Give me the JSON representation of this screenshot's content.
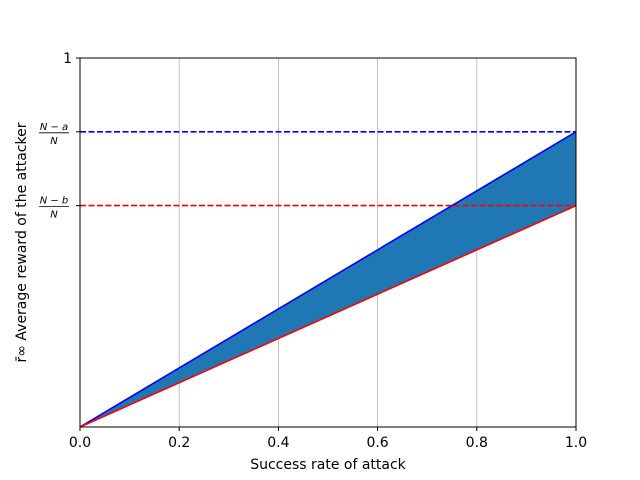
{
  "chart_data": {
    "type": "area",
    "xlabel": "Success rate of attack",
    "ylabel": "r̄∞ Average reward of the attacker",
    "xlim": [
      0,
      1
    ],
    "ylim": [
      0,
      1
    ],
    "grid": "vertical",
    "x_ticks": [
      "0.0",
      "0.2",
      "0.4",
      "0.6",
      "0.8",
      "1.0"
    ],
    "y_ticks": [
      {
        "value": 1.0,
        "label": "1"
      },
      {
        "value": 0.8,
        "numerator": "N − a",
        "denominator": "N"
      },
      {
        "value": 0.6,
        "numerator": "N − b",
        "denominator": "N"
      }
    ],
    "series": [
      {
        "color": "#0000ff",
        "style": "solid",
        "x": [
          0,
          1
        ],
        "y": [
          0,
          0.8
        ]
      },
      {
        "color": "#ff0000",
        "style": "solid",
        "x": [
          0,
          1
        ],
        "y": [
          0,
          0.6
        ]
      },
      {
        "color": "#0000ff",
        "style": "dashed",
        "x": [
          0,
          1
        ],
        "y": [
          0.8,
          0.8
        ]
      },
      {
        "color": "#ff0000",
        "style": "dashed",
        "x": [
          0,
          1
        ],
        "y": [
          0.6,
          0.6
        ]
      }
    ],
    "fill": {
      "color": "#1f77b4",
      "between": [
        0,
        1
      ]
    }
  }
}
